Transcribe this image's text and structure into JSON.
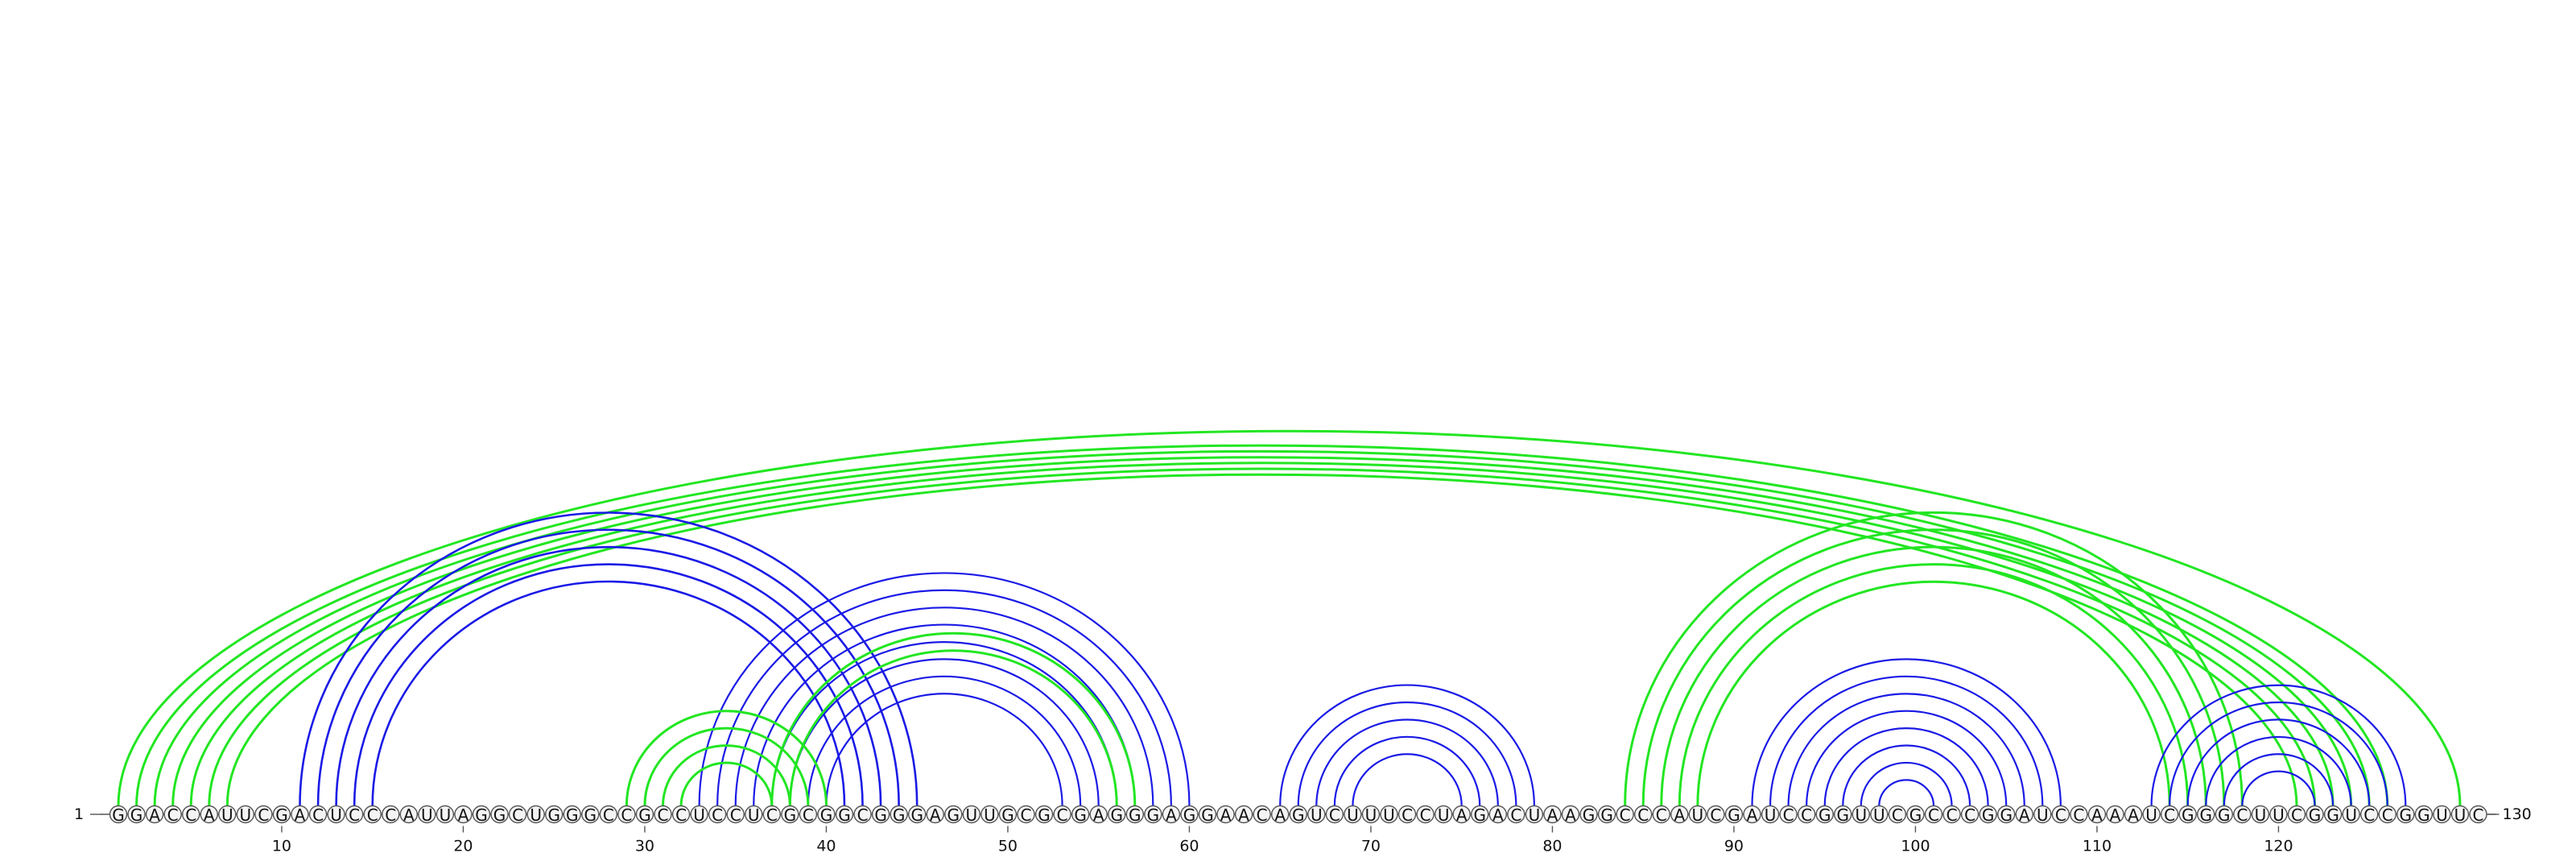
{
  "sequence": "GGACCAUUCGACUCCCAUUAGGCUGGGCCGCCUCCUCGCGGCGGGAGUUGCGCGAGGGAGGAACAGUCUUUCCUAGACUAAGGCCCAUCGAUCCGGUUCGCCCGGAUCCAAAUCGGGCUUCGGUCCGGUUC",
  "start_label": "1",
  "end_label": "130",
  "tick_labels": [
    "10",
    "20",
    "30",
    "40",
    "50",
    "60",
    "70",
    "80",
    "90",
    "100",
    "110",
    "120"
  ],
  "colors": {
    "blue_arcs": "#1a1ae6",
    "green_arcs": "#22e622",
    "backbone": "#555555"
  },
  "green_outer_helix": [
    [
      1,
      130
    ],
    [
      2,
      126
    ],
    [
      3,
      125
    ],
    [
      4,
      124
    ],
    [
      5,
      123
    ],
    [
      6,
      122
    ],
    [
      7,
      121
    ]
  ],
  "blue_helix_a": [
    [
      11,
      45
    ],
    [
      12,
      44
    ],
    [
      13,
      43
    ],
    [
      14,
      42
    ],
    [
      15,
      41
    ]
  ],
  "green_helix_b": [
    [
      29,
      40
    ],
    [
      30,
      39
    ],
    [
      31,
      38
    ],
    [
      32,
      37
    ]
  ],
  "blue_helix_c": [
    [
      33,
      60
    ],
    [
      34,
      59
    ],
    [
      35,
      58
    ],
    [
      36,
      57
    ],
    [
      37,
      56
    ],
    [
      38,
      55
    ],
    [
      39,
      54
    ],
    [
      40,
      53
    ]
  ],
  "green_helix_d": [
    [
      37,
      57
    ],
    [
      38,
      56
    ]
  ],
  "blue_hairpin_e": [
    [
      65,
      79
    ],
    [
      66,
      78
    ],
    [
      67,
      77
    ],
    [
      68,
      76
    ],
    [
      69,
      75
    ]
  ],
  "green_helix_f": [
    [
      84,
      118
    ],
    [
      85,
      117
    ],
    [
      86,
      116
    ],
    [
      87,
      115
    ],
    [
      88,
      114
    ]
  ],
  "blue_helix_g": [
    [
      91,
      108
    ],
    [
      92,
      107
    ],
    [
      93,
      106
    ],
    [
      94,
      105
    ],
    [
      95,
      104
    ],
    [
      96,
      103
    ],
    [
      97,
      102
    ],
    [
      98,
      101
    ]
  ],
  "blue_helix_h": [
    [
      113,
      127
    ],
    [
      114,
      126
    ],
    [
      115,
      125
    ],
    [
      116,
      124
    ],
    [
      117,
      123
    ],
    [
      118,
      122
    ]
  ]
}
